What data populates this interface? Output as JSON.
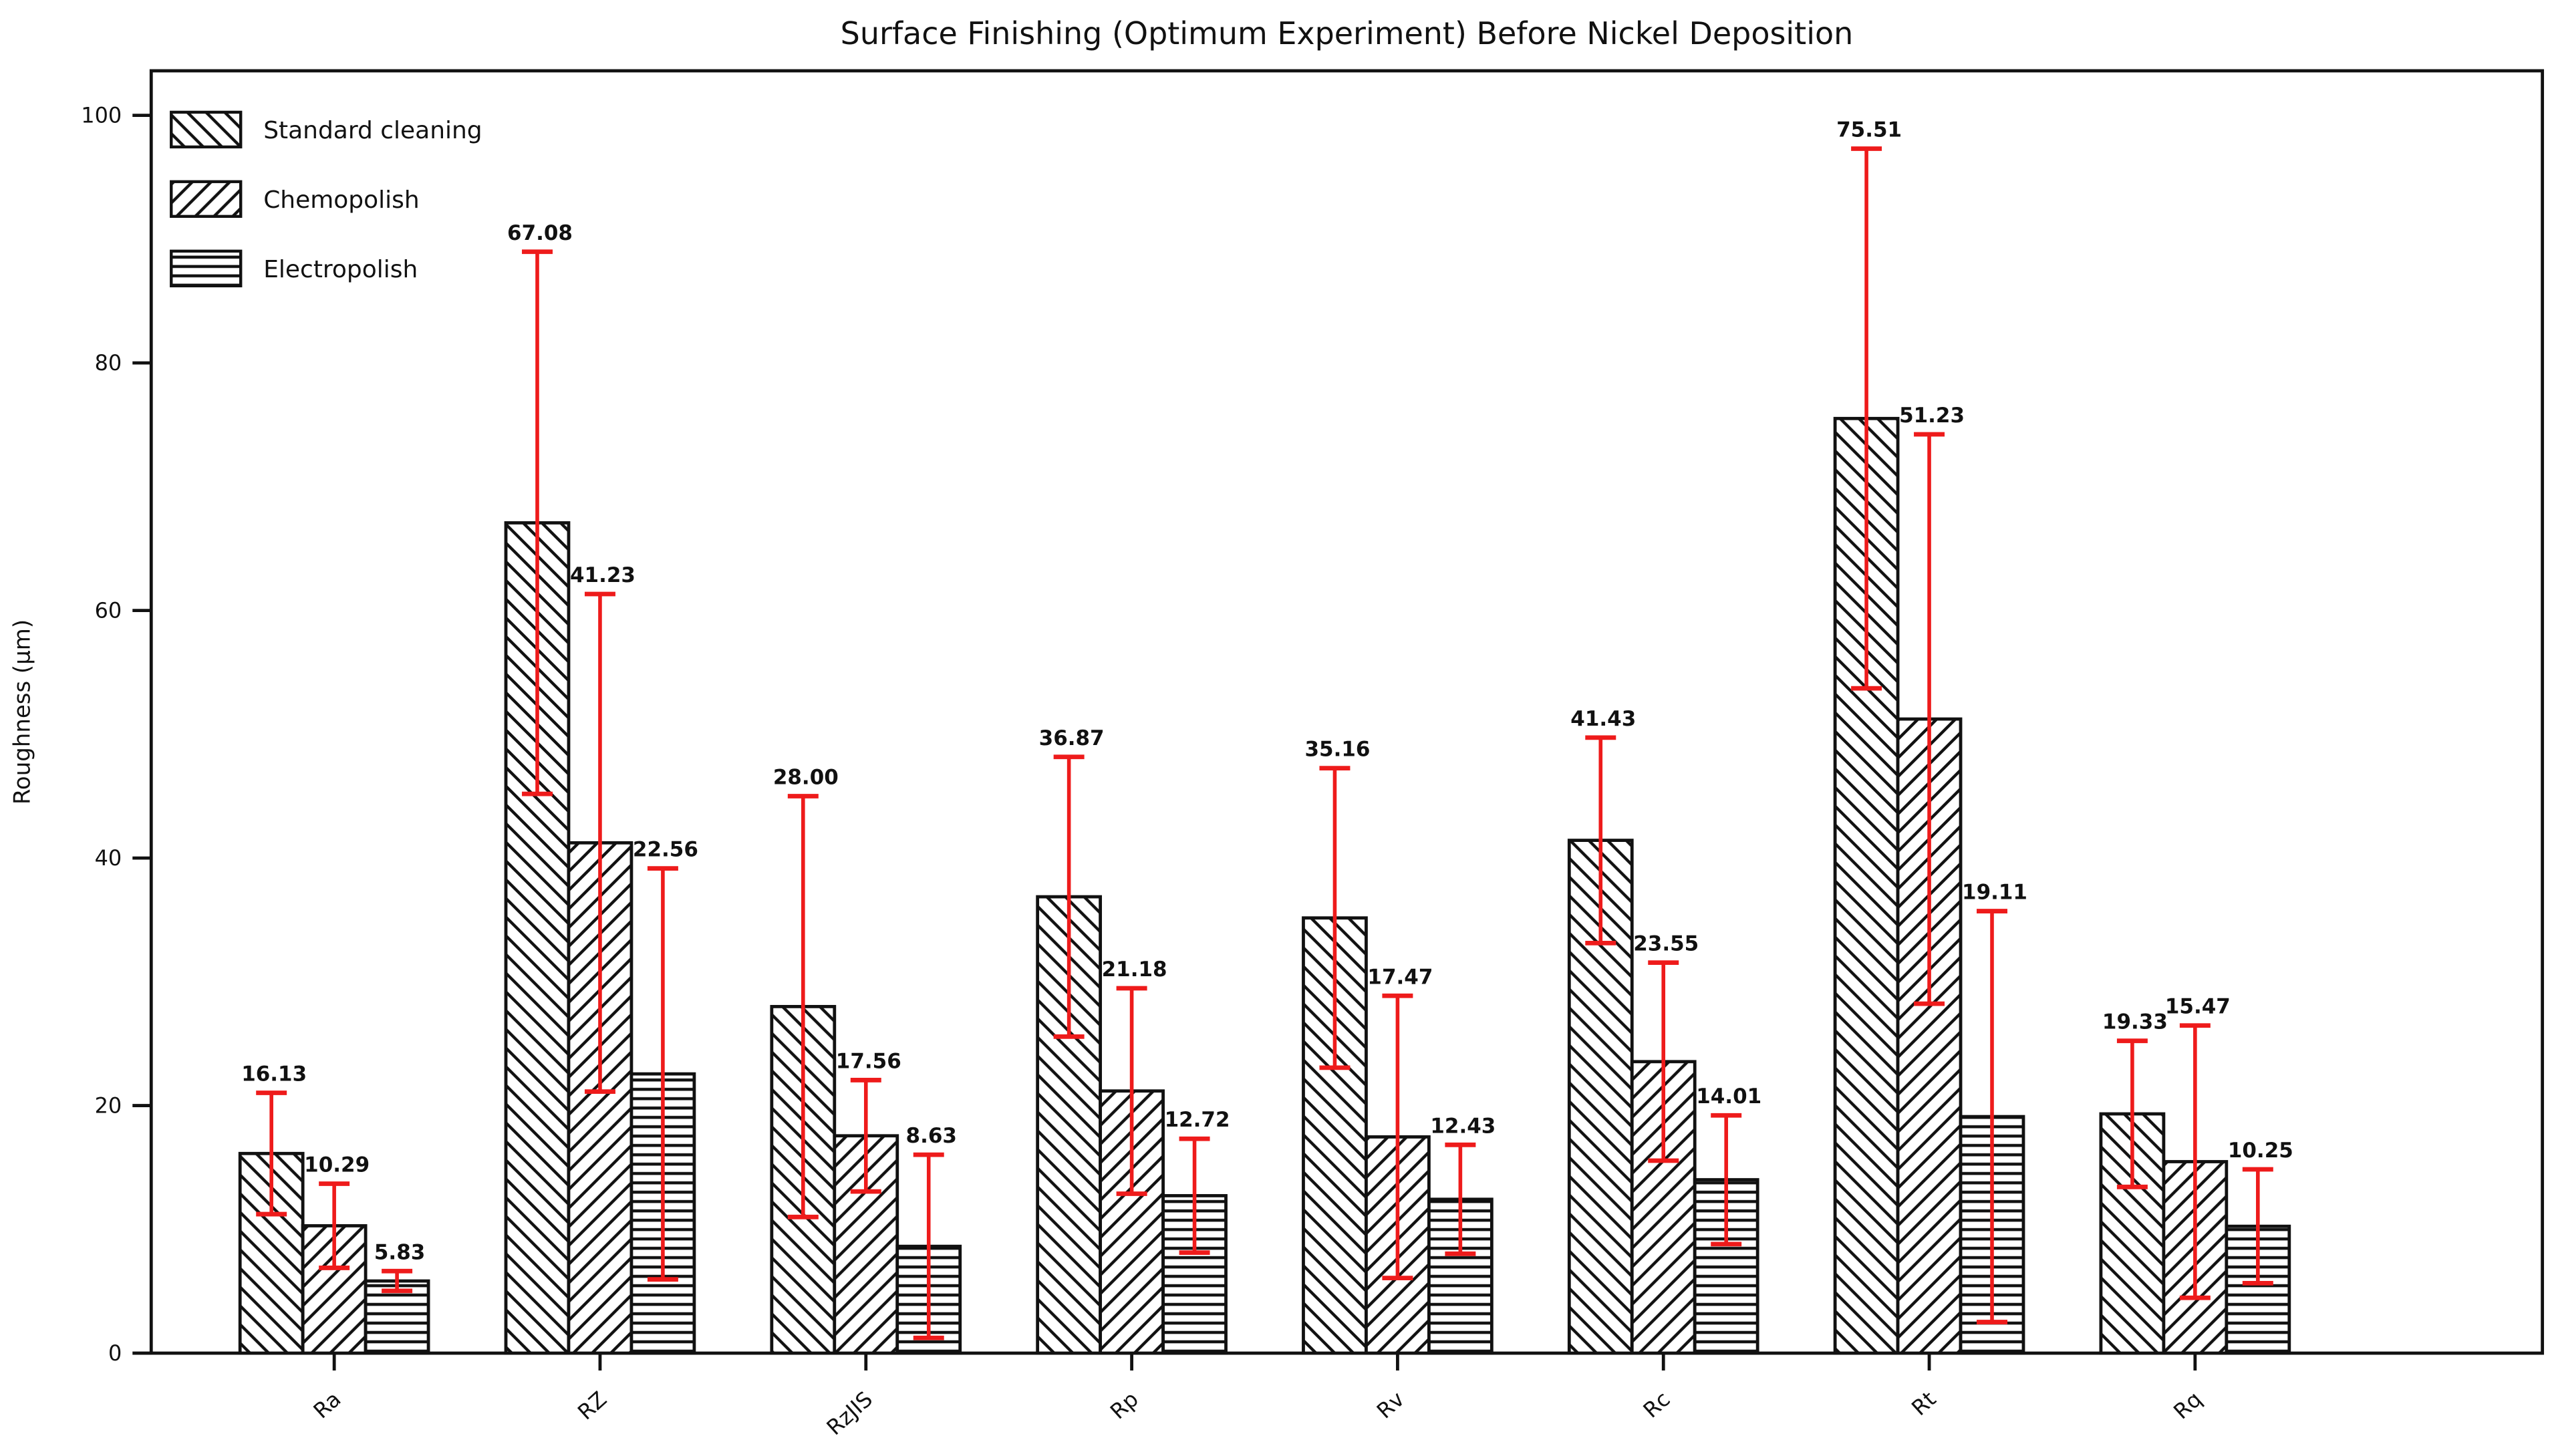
{
  "chart_data": {
    "type": "bar",
    "title": "Surface Finishing (Optimum Experiment) Before Nickel Deposition",
    "xlabel": "",
    "ylabel": "Roughness (μm)",
    "categories": [
      "Ra",
      "RZ",
      "RzJIS",
      "Rp",
      "Rv",
      "Rc",
      "Rt",
      "Rq"
    ],
    "series": [
      {
        "name": "Standard cleaning",
        "hatch": "backslash",
        "values": [
          16.13,
          67.08,
          28.0,
          36.87,
          35.16,
          41.43,
          75.51,
          19.33
        ],
        "errors": [
          4.9,
          21.9,
          17.0,
          11.3,
          12.1,
          8.3,
          21.8,
          5.9
        ]
      },
      {
        "name": "Chemopolish",
        "hatch": "slash",
        "values": [
          10.29,
          41.23,
          17.56,
          21.18,
          17.47,
          23.55,
          51.23,
          15.47
        ],
        "errors": [
          3.4,
          20.1,
          4.5,
          8.3,
          11.4,
          8.0,
          23.0,
          11.0
        ]
      },
      {
        "name": "Electropolish",
        "hatch": "horizontal",
        "values": [
          5.83,
          22.56,
          8.63,
          12.72,
          12.43,
          14.01,
          19.11,
          10.25
        ],
        "errors": [
          0.8,
          16.6,
          7.4,
          4.6,
          4.4,
          5.2,
          16.6,
          4.6
        ]
      }
    ],
    "value_label_decimals": 2,
    "ylim": [
      0,
      103.6
    ],
    "yticks": [
      0,
      20,
      40,
      60,
      80,
      100
    ],
    "legend_position": "upper-left",
    "grid": false,
    "error_bar_style": "symmetric-caps",
    "colors": {
      "bar_fill": "#ffffff",
      "bar_edge": "#111111",
      "error_bar": "#ee1b1b",
      "text": "#111111",
      "background": "#ffffff"
    }
  }
}
